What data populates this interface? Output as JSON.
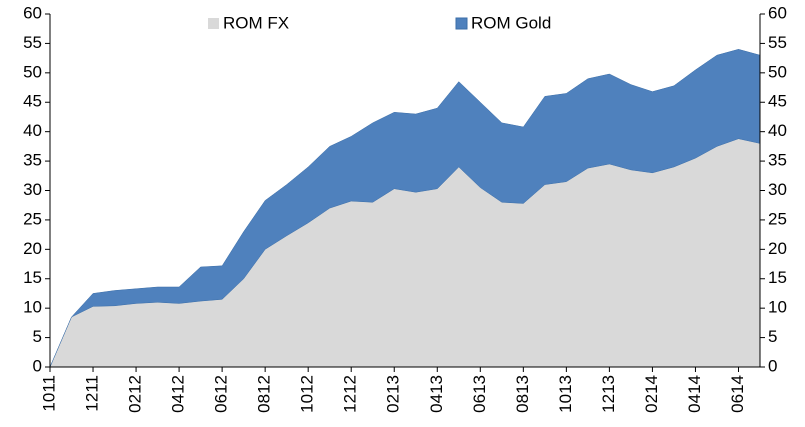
{
  "chart_data": {
    "type": "stacked_area",
    "categories": [
      "1011",
      null,
      "1211",
      null,
      "0212",
      null,
      "0412",
      null,
      "0612",
      null,
      "0812",
      null,
      "1012",
      null,
      "1212",
      null,
      "0213",
      null,
      "0413",
      null,
      "0613",
      null,
      "0813",
      null,
      "1013",
      null,
      "1213",
      null,
      "0214",
      null,
      "0414",
      null,
      "0614",
      null
    ],
    "series": [
      {
        "name": "ROM FX",
        "color": "#d9d9d9",
        "values": [
          0,
          8.5,
          10.3,
          10.4,
          10.8,
          11,
          10.8,
          11.2,
          11.5,
          15,
          20,
          22.3,
          24.5,
          27,
          28.2,
          28,
          30.3,
          29.7,
          30.3,
          34,
          30.5,
          28,
          27.8,
          31,
          31.5,
          33.8,
          34.5,
          33.5,
          33,
          34,
          35.5,
          37.5,
          38.8,
          38
        ]
      },
      {
        "name": "ROM Gold",
        "color": "#4f81bd",
        "values": [
          0,
          0,
          2.2,
          2.6,
          2.5,
          2.6,
          2.8,
          5.8,
          5.7,
          8,
          8.3,
          8.7,
          9.5,
          10.5,
          11,
          13.5,
          13,
          13.3,
          13.7,
          14.5,
          14.5,
          13.5,
          13,
          15,
          15,
          15.2,
          15.3,
          14.5,
          13.8,
          13.8,
          15,
          15.5,
          15.2,
          15
        ]
      }
    ],
    "ylim": [
      0,
      60
    ],
    "yticks": [
      0,
      5,
      10,
      15,
      20,
      25,
      30,
      35,
      40,
      45,
      50,
      55,
      60
    ],
    "y2lim": [
      0,
      60
    ],
    "y2ticks": [
      0,
      5,
      10,
      15,
      20,
      25,
      30,
      35,
      40,
      45,
      50,
      55,
      60
    ],
    "legend": "top"
  }
}
